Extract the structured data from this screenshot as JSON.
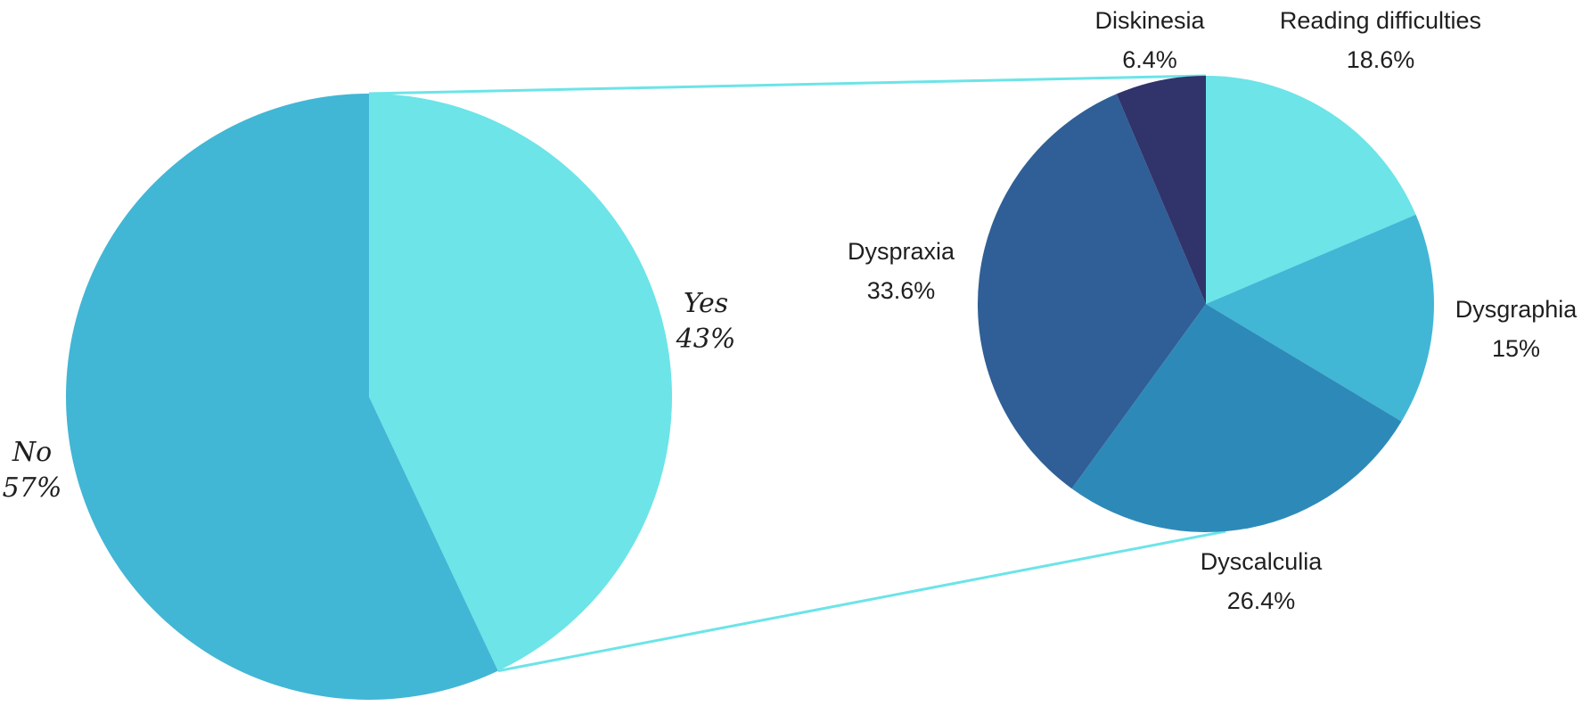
{
  "chart_data": [
    {
      "type": "pie",
      "title": "",
      "slices": [
        {
          "label": "Yes",
          "value": 43,
          "value_label": "43%",
          "color": "#6ce4e8"
        },
        {
          "label": "No",
          "value": 57,
          "value_label": "57%",
          "color": "#42b6d5"
        }
      ]
    },
    {
      "type": "pie",
      "title": "",
      "breakdown_of": "Yes",
      "slices": [
        {
          "label": "Reading difficulties",
          "value": 18.6,
          "value_label": "18.6%",
          "color": "#6ce4e8"
        },
        {
          "label": "Dysgraphia",
          "value": 15,
          "value_label": "15%",
          "color": "#42b6d5"
        },
        {
          "label": "Dyscalculia",
          "value": 26.4,
          "value_label": "26.4%",
          "color": "#2d8ab8"
        },
        {
          "label": "Dyspraxia",
          "value": 33.6,
          "value_label": "33.6%",
          "color": "#2f5f96"
        },
        {
          "label": "Diskinesia",
          "value": 6.4,
          "value_label": "6.4%",
          "color": "#31336b"
        }
      ]
    }
  ],
  "connector_color": "#6ce4e8"
}
